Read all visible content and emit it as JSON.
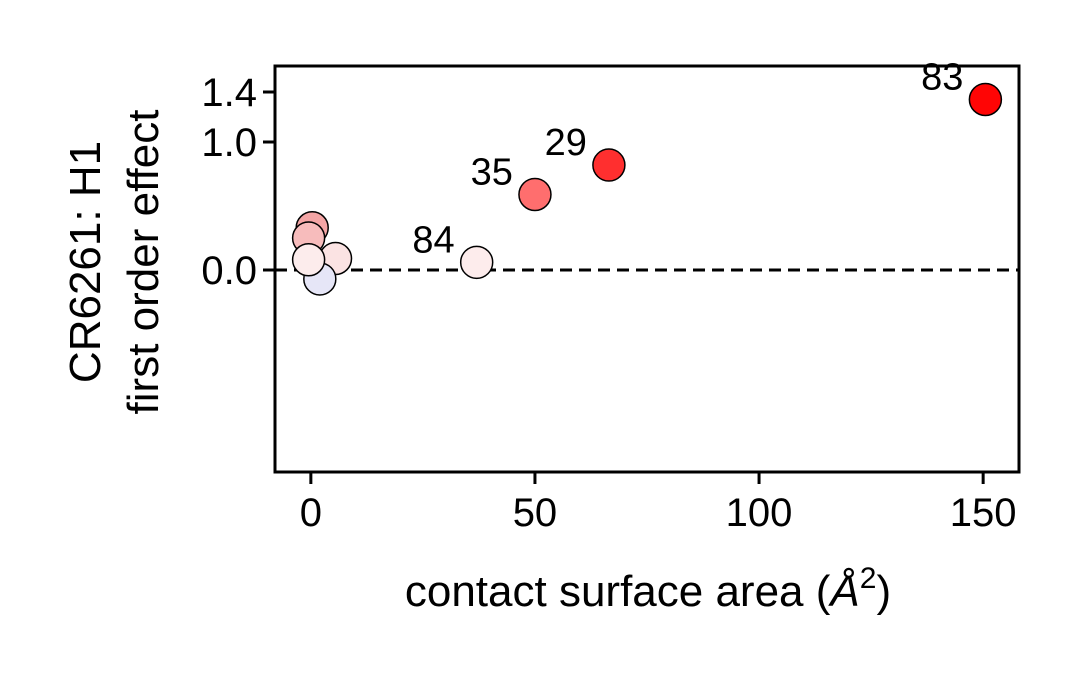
{
  "chart_data": {
    "type": "scatter",
    "xlabel": "contact surface area",
    "xlabel_unit_base": "Å",
    "xlabel_unit_exp": "2",
    "ylabel_line1": "CR6261: H1",
    "ylabel_line2": "first order effect",
    "xlim": [
      -8,
      158
    ],
    "xticks": [
      0,
      50,
      100,
      150
    ],
    "xtick_labels": [
      "0",
      "50",
      "100",
      "150"
    ],
    "yticks": [
      0.0,
      1.0,
      1.4
    ],
    "ytick_labels": [
      "0.0",
      "1.0",
      "1.4"
    ],
    "reference_line": {
      "y": 0.0,
      "style": "dashed"
    },
    "grid": false,
    "legend": "none",
    "points": [
      {
        "x": 0.3,
        "y": 0.33,
        "label": "",
        "color": "#f4a5a5"
      },
      {
        "x": 5.5,
        "y": 0.09,
        "label": "",
        "color": "#fbe3e3"
      },
      {
        "x": 2.0,
        "y": -0.07,
        "label": "",
        "color": "#e6e6f7"
      },
      {
        "x": -0.5,
        "y": 0.25,
        "label": "",
        "color": "#f7bcbc"
      },
      {
        "x": -0.5,
        "y": 0.08,
        "label": "",
        "color": "#fcecec"
      },
      {
        "x": 37.0,
        "y": 0.06,
        "label": "84",
        "color": "#fdecec"
      },
      {
        "x": 50.0,
        "y": 0.59,
        "label": "35",
        "color": "#ff6e6e"
      },
      {
        "x": 66.5,
        "y": 0.82,
        "label": "29",
        "color": "#ff2f2f"
      },
      {
        "x": 150.5,
        "y": 1.34,
        "label": "83",
        "color": "#ff0505"
      }
    ]
  }
}
